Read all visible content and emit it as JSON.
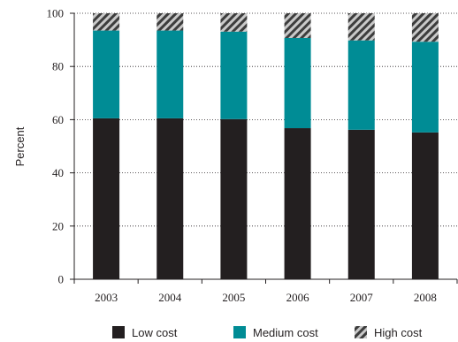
{
  "chart_data": {
    "type": "bar",
    "stacked": true,
    "categories": [
      "2003",
      "2004",
      "2005",
      "2006",
      "2007",
      "2008"
    ],
    "series": [
      {
        "name": "Low cost",
        "color": "#231f20",
        "values": [
          60.5,
          60.5,
          60.2,
          56.8,
          56.2,
          55.2
        ]
      },
      {
        "name": "Medium cost",
        "color": "#008c95",
        "values": [
          33.0,
          33.0,
          32.9,
          33.9,
          33.6,
          34.1
        ]
      },
      {
        "name": "High cost",
        "color": "#6d6d6d",
        "pattern": "diagonal-hatch",
        "values": [
          6.5,
          6.5,
          6.9,
          9.3,
          10.2,
          10.7
        ]
      }
    ],
    "ylabel": "Percent",
    "xlabel": "",
    "ylim": [
      0,
      100
    ],
    "yticks": [
      0,
      20,
      40,
      60,
      80,
      100
    ],
    "grid": "horizontal dotted",
    "legend_position": "bottom"
  }
}
